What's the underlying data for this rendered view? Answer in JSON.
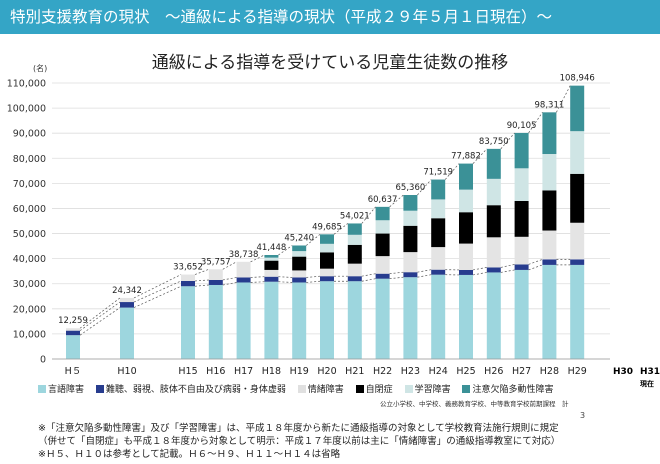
{
  "header": {
    "title": "特別支援教育の現状　～通級による指導の現状（平成２９年５月１日現在）～"
  },
  "colors": {
    "banner": "#34a5c6",
    "series": [
      "#9dd6de",
      "#273c8e",
      "#e4e4e4",
      "#ececec",
      "#000000",
      "#cfe5e5",
      "#3b9197"
    ]
  },
  "chart_data": {
    "type": "bar",
    "title": "通級による指導を受けている児童生徒数の推移",
    "ylabel": "(名)",
    "ylim": [
      0,
      110000
    ],
    "yticks": [
      "0",
      "10,000",
      "20,000",
      "30,000",
      "40,000",
      "50,000",
      "60,000",
      "70,000",
      "80,000",
      "90,000",
      "100,000",
      "110,000"
    ],
    "categories": [
      "H５",
      "H10",
      "H15",
      "H16",
      "H17",
      "H18",
      "H19",
      "H20",
      "H21",
      "H22",
      "H23",
      "H24",
      "H25",
      "H26",
      "H27",
      "H28",
      "H29"
    ],
    "totals": [
      12259,
      24342,
      33652,
      35757,
      38738,
      41448,
      45240,
      49685,
      54021,
      60637,
      65360,
      71519,
      77882,
      83750,
      90105,
      98311,
      108946
    ],
    "total_labels": [
      "12,259",
      "24,342",
      "33,652",
      "35,757",
      "38,738",
      "41,448",
      "45,240",
      "49,685",
      "54,021",
      "60,637",
      "65,360",
      "71,519",
      "77,882",
      "83,750",
      "90,105",
      "98,311",
      "108,946"
    ],
    "series": [
      {
        "name": "言語障害",
        "values": [
          9500,
          20500,
          29000,
          29500,
          30500,
          30800,
          30500,
          31000,
          31000,
          32000,
          32600,
          33600,
          33500,
          34500,
          35500,
          37500,
          37500
        ]
      },
      {
        "name": "難聴、弱視、肢体不自由及び病弱・身体虚弱",
        "values": [
          1800,
          2200,
          2100,
          2000,
          2000,
          2000,
          2000,
          2000,
          2000,
          2000,
          2000,
          2000,
          2000,
          2000,
          2200,
          2200,
          2200
        ]
      },
      {
        "name": "情緒障害",
        "values": [
          959,
          1642,
          2552,
          4257,
          6238,
          2700,
          2800,
          3000,
          5000,
          7000,
          8000,
          9000,
          10500,
          12000,
          11000,
          11500,
          14600
        ]
      },
      {
        "name": "",
        "values": [
          0,
          0,
          0,
          0,
          0,
          0,
          0,
          0,
          0,
          0,
          0,
          0,
          0,
          0,
          0,
          0,
          0
        ]
      },
      {
        "name": "自閉症",
        "values": [
          0,
          0,
          0,
          0,
          0,
          3700,
          5500,
          6500,
          7500,
          9000,
          10500,
          11500,
          12500,
          12800,
          14300,
          16000,
          19500
        ]
      },
      {
        "name": "学習障害",
        "values": [
          0,
          0,
          0,
          0,
          0,
          1200,
          2200,
          3400,
          4000,
          5300,
          6000,
          7500,
          9000,
          10500,
          13000,
          14500,
          17000
        ]
      },
      {
        "name": "注意欠陥多動性障害",
        "values": [
          0,
          0,
          0,
          0,
          0,
          1048,
          2240,
          3785,
          4521,
          5337,
          6260,
          7919,
          10382,
          11950,
          14105,
          16611,
          18146
        ]
      }
    ],
    "extra_categories": [
      "H30",
      "H31"
    ],
    "extra_note": "現在"
  },
  "footer": {
    "source": "公立小学校、中学校、義務教育学校、中等教育学校前期課程　計",
    "notes": [
      "※「注意欠陥多動性障害」及び「学習障害」は、平成１８年度から新たに通級指導の対象として学校教育法施行規則に規定",
      "（併せて「自閉症」も平成１８年度から対象として明示：平成１７年度以前は主に「情緒障害」の通級指導教室にて対応）",
      "※Ｈ５、Ｈ１０は参考として記載。Ｈ６～Ｈ９、Ｈ１１～Ｈ１４は省略"
    ],
    "page_number": "3"
  }
}
